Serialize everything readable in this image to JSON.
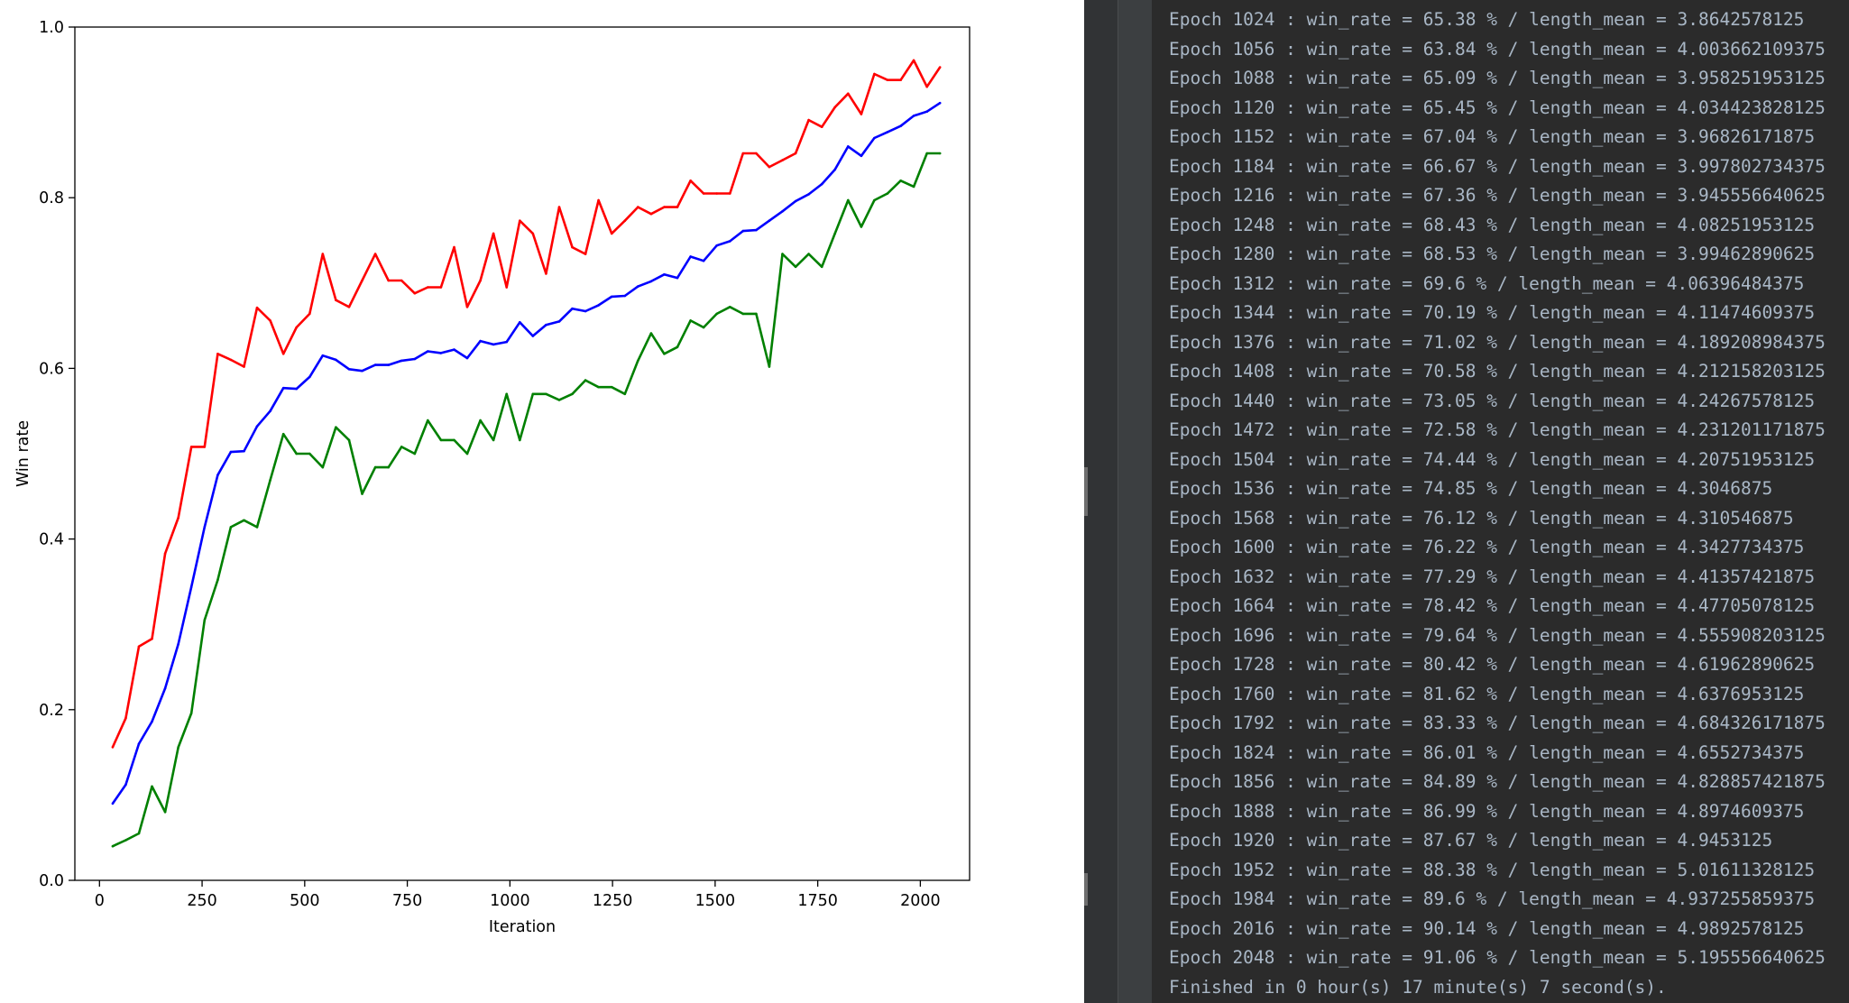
{
  "chart_data": {
    "type": "line",
    "xlabel": "Iteration",
    "ylabel": "Win rate",
    "xlim": [
      -60,
      2120
    ],
    "ylim": [
      0,
      1.0
    ],
    "xticks": [
      0,
      250,
      500,
      750,
      1000,
      1250,
      1500,
      1750,
      2000
    ],
    "yticks": [
      0.0,
      0.2,
      0.4,
      0.6,
      0.8,
      1.0
    ],
    "ytick_labels": [
      "0.0",
      "0.2",
      "0.4",
      "0.6",
      "0.8",
      "1.0"
    ],
    "grid": false,
    "legend": "none",
    "x": [
      32,
      64,
      96,
      128,
      160,
      192,
      224,
      256,
      288,
      320,
      352,
      384,
      416,
      448,
      480,
      512,
      544,
      576,
      608,
      640,
      672,
      704,
      736,
      768,
      800,
      832,
      864,
      896,
      928,
      960,
      992,
      1024,
      1056,
      1088,
      1120,
      1152,
      1184,
      1216,
      1248,
      1280,
      1312,
      1344,
      1376,
      1408,
      1440,
      1472,
      1504,
      1536,
      1568,
      1600,
      1632,
      1664,
      1696,
      1728,
      1760,
      1792,
      1824,
      1856,
      1888,
      1920,
      1952,
      1984,
      2016,
      2048
    ],
    "series": [
      {
        "color": "#ff0000",
        "values": [
          0.156,
          0.19,
          0.274,
          0.283,
          0.383,
          0.425,
          0.508,
          0.508,
          0.617,
          0.61,
          0.602,
          0.671,
          0.656,
          0.617,
          0.648,
          0.664,
          0.734,
          0.68,
          0.672,
          0.703,
          0.734,
          0.703,
          0.703,
          0.688,
          0.695,
          0.695,
          0.742,
          0.672,
          0.703,
          0.758,
          0.695,
          0.773,
          0.758,
          0.711,
          0.789,
          0.742,
          0.734,
          0.797,
          0.758,
          0.773,
          0.789,
          0.781,
          0.789,
          0.789,
          0.82,
          0.805,
          0.805,
          0.805,
          0.852,
          0.852,
          0.836,
          0.844,
          0.852,
          0.891,
          0.883,
          0.906,
          0.922,
          0.898,
          0.945,
          0.938,
          0.938,
          0.961,
          0.93,
          0.953
        ]
      },
      {
        "color": "#0000ff",
        "values": [
          0.09,
          0.112,
          0.16,
          0.186,
          0.225,
          0.277,
          0.344,
          0.414,
          0.475,
          0.502,
          0.503,
          0.532,
          0.55,
          0.577,
          0.576,
          0.59,
          0.615,
          0.61,
          0.599,
          0.597,
          0.604,
          0.604,
          0.609,
          0.611,
          0.62,
          0.618,
          0.622,
          0.612,
          0.632,
          0.628,
          0.631,
          0.654,
          0.638,
          0.651,
          0.655,
          0.67,
          0.667,
          0.674,
          0.684,
          0.685,
          0.696,
          0.702,
          0.71,
          0.706,
          0.731,
          0.726,
          0.744,
          0.749,
          0.761,
          0.762,
          0.773,
          0.784,
          0.796,
          0.804,
          0.816,
          0.833,
          0.86,
          0.849,
          0.87,
          0.877,
          0.884,
          0.896,
          0.901,
          0.911
        ]
      },
      {
        "color": "#008000",
        "values": [
          0.04,
          0.047,
          0.055,
          0.11,
          0.08,
          0.156,
          0.196,
          0.305,
          0.352,
          0.414,
          0.422,
          0.414,
          0.469,
          0.523,
          0.5,
          0.5,
          0.484,
          0.531,
          0.516,
          0.453,
          0.484,
          0.484,
          0.508,
          0.5,
          0.539,
          0.516,
          0.516,
          0.5,
          0.539,
          0.516,
          0.57,
          0.516,
          0.57,
          0.57,
          0.563,
          0.57,
          0.586,
          0.578,
          0.578,
          0.57,
          0.609,
          0.641,
          0.617,
          0.625,
          0.656,
          0.648,
          0.664,
          0.672,
          0.664,
          0.664,
          0.602,
          0.734,
          0.719,
          0.734,
          0.719,
          0.758,
          0.797,
          0.766,
          0.797,
          0.805,
          0.82,
          0.813,
          0.852,
          0.852
        ]
      }
    ]
  },
  "console": {
    "lines": [
      "Epoch 1024 : win_rate = 65.38 % / length_mean = 3.8642578125",
      "Epoch 1056 : win_rate = 63.84 % / length_mean = 4.003662109375",
      "Epoch 1088 : win_rate = 65.09 % / length_mean = 3.958251953125",
      "Epoch 1120 : win_rate = 65.45 % / length_mean = 4.034423828125",
      "Epoch 1152 : win_rate = 67.04 % / length_mean = 3.96826171875",
      "Epoch 1184 : win_rate = 66.67 % / length_mean = 3.997802734375",
      "Epoch 1216 : win_rate = 67.36 % / length_mean = 3.945556640625",
      "Epoch 1248 : win_rate = 68.43 % / length_mean = 4.08251953125",
      "Epoch 1280 : win_rate = 68.53 % / length_mean = 3.99462890625",
      "Epoch 1312 : win_rate = 69.6 % / length_mean = 4.06396484375",
      "Epoch 1344 : win_rate = 70.19 % / length_mean = 4.11474609375",
      "Epoch 1376 : win_rate = 71.02 % / length_mean = 4.189208984375",
      "Epoch 1408 : win_rate = 70.58 % / length_mean = 4.212158203125",
      "Epoch 1440 : win_rate = 73.05 % / length_mean = 4.24267578125",
      "Epoch 1472 : win_rate = 72.58 % / length_mean = 4.231201171875",
      "Epoch 1504 : win_rate = 74.44 % / length_mean = 4.20751953125",
      "Epoch 1536 : win_rate = 74.85 % / length_mean = 4.3046875",
      "Epoch 1568 : win_rate = 76.12 % / length_mean = 4.310546875",
      "Epoch 1600 : win_rate = 76.22 % / length_mean = 4.3427734375",
      "Epoch 1632 : win_rate = 77.29 % / length_mean = 4.41357421875",
      "Epoch 1664 : win_rate = 78.42 % / length_mean = 4.47705078125",
      "Epoch 1696 : win_rate = 79.64 % / length_mean = 4.555908203125",
      "Epoch 1728 : win_rate = 80.42 % / length_mean = 4.61962890625",
      "Epoch 1760 : win_rate = 81.62 % / length_mean = 4.6376953125",
      "Epoch 1792 : win_rate = 83.33 % / length_mean = 4.684326171875",
      "Epoch 1824 : win_rate = 86.01 % / length_mean = 4.6552734375",
      "Epoch 1856 : win_rate = 84.89 % / length_mean = 4.828857421875",
      "Epoch 1888 : win_rate = 86.99 % / length_mean = 4.8974609375",
      "Epoch 1920 : win_rate = 87.67 % / length_mean = 4.9453125",
      "Epoch 1952 : win_rate = 88.38 % / length_mean = 5.01611328125",
      "Epoch 1984 : win_rate = 89.6 % / length_mean = 4.937255859375",
      "Epoch 2016 : win_rate = 90.14 % / length_mean = 4.9892578125",
      "Epoch 2048 : win_rate = 91.06 % / length_mean = 5.195556640625",
      "Finished in 0 hour(s) 17 minute(s) 7 second(s)."
    ]
  }
}
